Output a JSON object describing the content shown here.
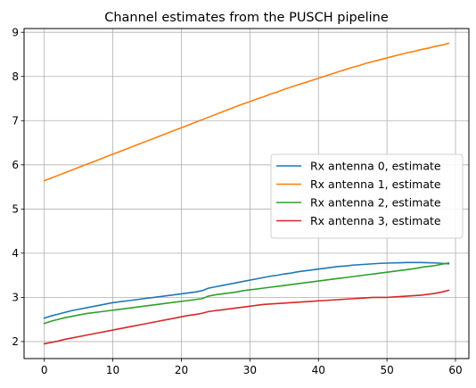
{
  "chart_data": {
    "type": "line",
    "title": "Channel estimates from the PUSCH pipeline",
    "xlabel": "",
    "ylabel": "",
    "xlim": [
      -2.95,
      61.95
    ],
    "ylim": [
      1.615,
      9.085
    ],
    "xticks": [
      0,
      10,
      20,
      30,
      40,
      50,
      60
    ],
    "yticks": [
      2,
      3,
      4,
      5,
      6,
      7,
      8,
      9
    ],
    "grid": true,
    "legend_position": "center-right",
    "x": [
      0,
      1,
      2,
      3,
      4,
      5,
      6,
      7,
      8,
      9,
      10,
      11,
      12,
      13,
      14,
      15,
      16,
      17,
      18,
      19,
      20,
      21,
      22,
      23,
      24,
      25,
      26,
      27,
      28,
      29,
      30,
      31,
      32,
      33,
      34,
      35,
      36,
      37,
      38,
      39,
      40,
      41,
      42,
      43,
      44,
      45,
      46,
      47,
      48,
      49,
      50,
      51,
      52,
      53,
      54,
      55,
      56,
      57,
      58,
      59
    ],
    "series": [
      {
        "name": "Rx antenna 0, estimate",
        "color": "#1f77b4",
        "values": [
          2.53,
          2.58,
          2.62,
          2.66,
          2.7,
          2.73,
          2.76,
          2.79,
          2.82,
          2.85,
          2.88,
          2.9,
          2.92,
          2.94,
          2.96,
          2.98,
          3.0,
          3.02,
          3.04,
          3.06,
          3.08,
          3.1,
          3.12,
          3.15,
          3.21,
          3.24,
          3.27,
          3.3,
          3.33,
          3.36,
          3.39,
          3.42,
          3.45,
          3.48,
          3.5,
          3.53,
          3.55,
          3.58,
          3.6,
          3.62,
          3.64,
          3.66,
          3.68,
          3.7,
          3.71,
          3.73,
          3.74,
          3.75,
          3.76,
          3.77,
          3.775,
          3.78,
          3.785,
          3.79,
          3.79,
          3.79,
          3.785,
          3.78,
          3.77,
          3.76
        ]
      },
      {
        "name": "Rx antenna 1, estimate",
        "color": "#ff7f0e",
        "values": [
          5.64,
          5.7,
          5.76,
          5.82,
          5.88,
          5.94,
          6.0,
          6.06,
          6.12,
          6.18,
          6.24,
          6.3,
          6.36,
          6.42,
          6.48,
          6.54,
          6.6,
          6.66,
          6.72,
          6.78,
          6.84,
          6.9,
          6.96,
          7.02,
          7.08,
          7.14,
          7.2,
          7.26,
          7.32,
          7.38,
          7.43,
          7.49,
          7.54,
          7.6,
          7.65,
          7.71,
          7.76,
          7.81,
          7.86,
          7.91,
          7.96,
          8.01,
          8.06,
          8.11,
          8.16,
          8.21,
          8.25,
          8.3,
          8.34,
          8.38,
          8.42,
          8.46,
          8.5,
          8.54,
          8.57,
          8.61,
          8.64,
          8.68,
          8.71,
          8.75
        ]
      },
      {
        "name": "Rx antenna 2, estimate",
        "color": "#2ca02c",
        "values": [
          2.41,
          2.46,
          2.5,
          2.54,
          2.57,
          2.6,
          2.63,
          2.65,
          2.67,
          2.69,
          2.71,
          2.73,
          2.75,
          2.77,
          2.79,
          2.81,
          2.83,
          2.85,
          2.87,
          2.89,
          2.91,
          2.93,
          2.95,
          2.97,
          3.03,
          3.06,
          3.08,
          3.1,
          3.12,
          3.15,
          3.17,
          3.19,
          3.21,
          3.23,
          3.25,
          3.27,
          3.29,
          3.31,
          3.33,
          3.35,
          3.37,
          3.39,
          3.41,
          3.43,
          3.45,
          3.47,
          3.49,
          3.51,
          3.53,
          3.55,
          3.57,
          3.59,
          3.61,
          3.63,
          3.65,
          3.68,
          3.7,
          3.72,
          3.75,
          3.78
        ]
      },
      {
        "name": "Rx antenna 3, estimate",
        "color": "#d62728",
        "values": [
          1.95,
          1.98,
          2.01,
          2.05,
          2.08,
          2.11,
          2.14,
          2.17,
          2.2,
          2.23,
          2.26,
          2.29,
          2.32,
          2.35,
          2.38,
          2.41,
          2.44,
          2.47,
          2.5,
          2.53,
          2.56,
          2.59,
          2.61,
          2.64,
          2.68,
          2.7,
          2.72,
          2.74,
          2.76,
          2.78,
          2.8,
          2.82,
          2.84,
          2.85,
          2.86,
          2.87,
          2.88,
          2.89,
          2.9,
          2.91,
          2.92,
          2.93,
          2.94,
          2.95,
          2.96,
          2.97,
          2.98,
          2.99,
          3.0,
          3.0,
          3.0,
          3.01,
          3.02,
          3.03,
          3.04,
          3.05,
          3.07,
          3.09,
          3.12,
          3.16
        ]
      }
    ]
  }
}
